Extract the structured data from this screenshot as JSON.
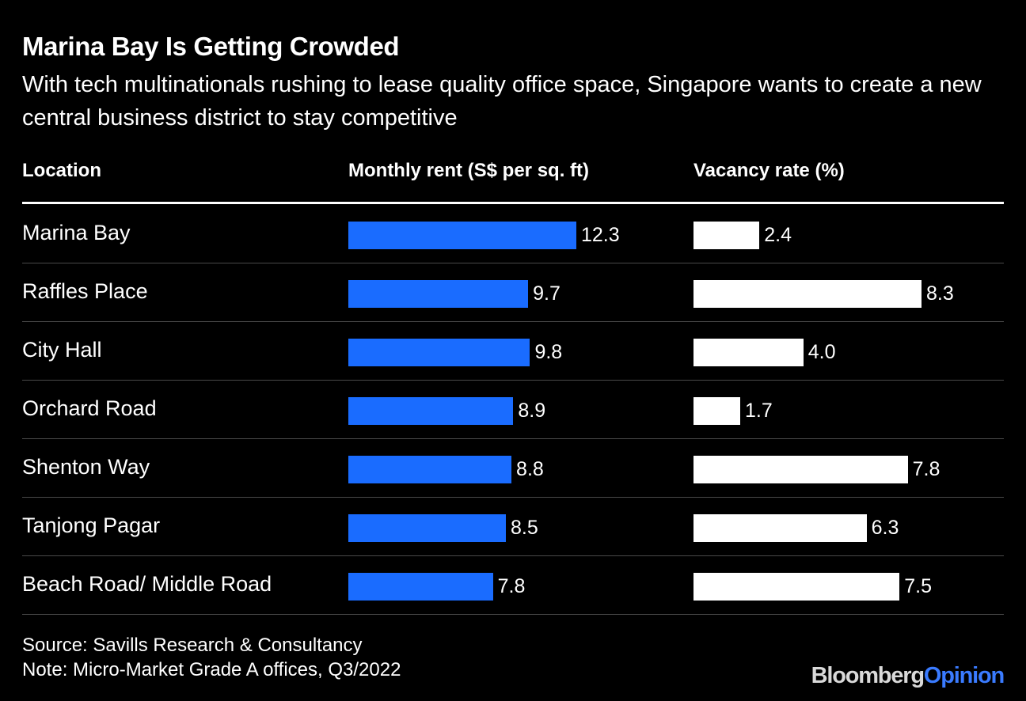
{
  "header": {
    "title": "Marina Bay Is Getting Crowded",
    "subtitle": "With tech multinationals rushing to lease quality office space, Singapore wants to create a new central business district to stay competitive"
  },
  "columns": {
    "location": "Location",
    "rent": "Monthly rent (S$ per sq. ft)",
    "vacancy": "Vacancy rate (%)"
  },
  "colors": {
    "rent_bar": "#1a6cff",
    "vacancy_bar": "#ffffff",
    "background": "#000000"
  },
  "chart_data": {
    "type": "bar",
    "orientation": "horizontal",
    "categories": [
      "Marina Bay",
      "Raffles Place",
      "City Hall",
      "Orchard Road",
      "Shenton Way",
      "Tanjong Pagar",
      "Beach Road/ Middle Road"
    ],
    "series": [
      {
        "name": "Monthly rent (S$ per sq. ft)",
        "values": [
          12.3,
          9.7,
          9.8,
          8.9,
          8.8,
          8.5,
          7.8
        ],
        "labels": [
          "12.3",
          "9.7",
          "9.8",
          "8.9",
          "8.8",
          "8.5",
          "7.8"
        ],
        "color": "#1a6cff"
      },
      {
        "name": "Vacancy rate (%)",
        "values": [
          2.4,
          8.3,
          4.0,
          1.7,
          7.8,
          6.3,
          7.5
        ],
        "labels": [
          "2.4",
          "8.3",
          "4.0",
          "1.7",
          "7.8",
          "6.3",
          "7.5"
        ],
        "color": "#ffffff"
      }
    ]
  },
  "footer": {
    "source": "Source: Savills Research & Consultancy",
    "note": "Note: Micro-Market Grade A offices, Q3/2022",
    "brand_primary": "Bloomberg",
    "brand_secondary": "Opinion"
  }
}
